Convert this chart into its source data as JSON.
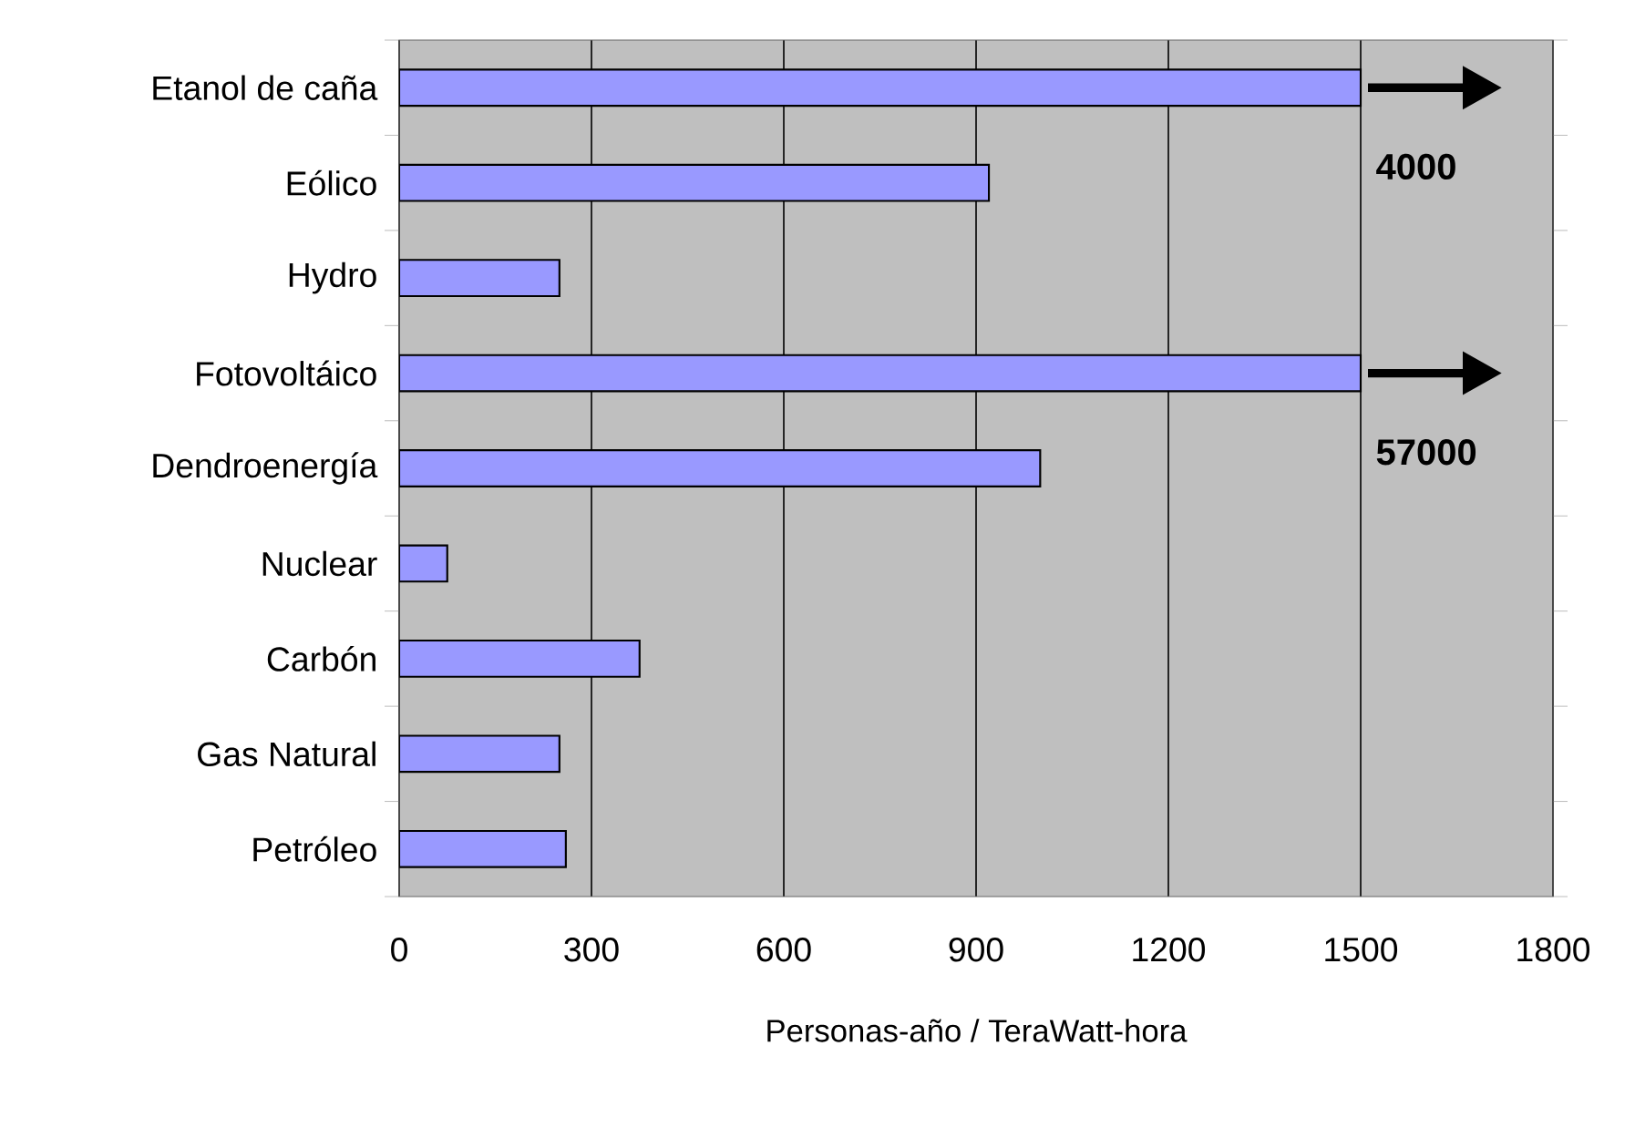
{
  "chart_data": {
    "type": "bar",
    "orientation": "horizontal",
    "xlabel": "Personas-año / TeraWatt-hora",
    "categories": [
      "Etanol de caña",
      "Eólico",
      "Hydro",
      "Fotovoltáico",
      "Dendroenergía",
      "Nuclear",
      "Carbón",
      "Gas Natural",
      "Petróleo"
    ],
    "values": [
      1500,
      920,
      250,
      1500,
      1000,
      75,
      375,
      250,
      260
    ],
    "color": "#9999ff",
    "xlim": [
      0,
      1800
    ],
    "xticks": [
      0,
      300,
      600,
      900,
      1200,
      1500,
      1800
    ],
    "grid": "x",
    "annotations": [
      {
        "text": "4000",
        "x": 1500,
        "y": "Etanol de caña"
      },
      {
        "text": "57000",
        "x": 1500,
        "y": "Fotovoltáico"
      }
    ]
  }
}
